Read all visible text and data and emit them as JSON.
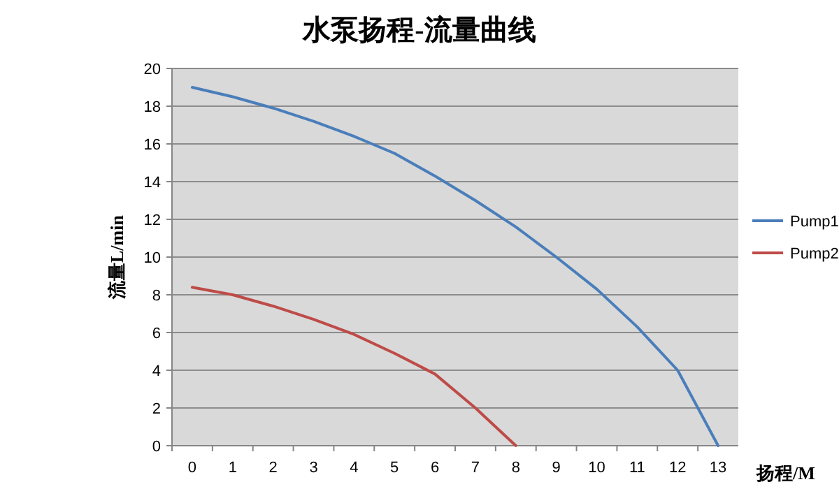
{
  "chart_data": {
    "type": "line",
    "title": "水泵扬程-流量曲线",
    "xlabel": "扬程/M",
    "ylabel": "流量L/min",
    "categories": [
      "0",
      "1",
      "2",
      "3",
      "4",
      "5",
      "6",
      "7",
      "8",
      "9",
      "10",
      "11",
      "12",
      "13"
    ],
    "series": [
      {
        "name": "Pump1",
        "color": "#4a7ebb",
        "values": [
          19,
          18.5,
          17.9,
          17.2,
          16.4,
          15.5,
          14.3,
          13.0,
          11.6,
          10.0,
          8.3,
          6.3,
          4.0,
          0
        ]
      },
      {
        "name": "Pump2",
        "color": "#be4b48",
        "values": [
          8.4,
          8.0,
          7.4,
          6.7,
          5.9,
          4.9,
          3.8,
          2.0,
          0,
          null,
          null,
          null,
          null,
          null
        ]
      }
    ],
    "ylim": [
      0,
      20
    ],
    "yticks": [
      0,
      2,
      4,
      6,
      8,
      10,
      12,
      14,
      16,
      18,
      20
    ],
    "grid": "y",
    "legend": "right"
  }
}
